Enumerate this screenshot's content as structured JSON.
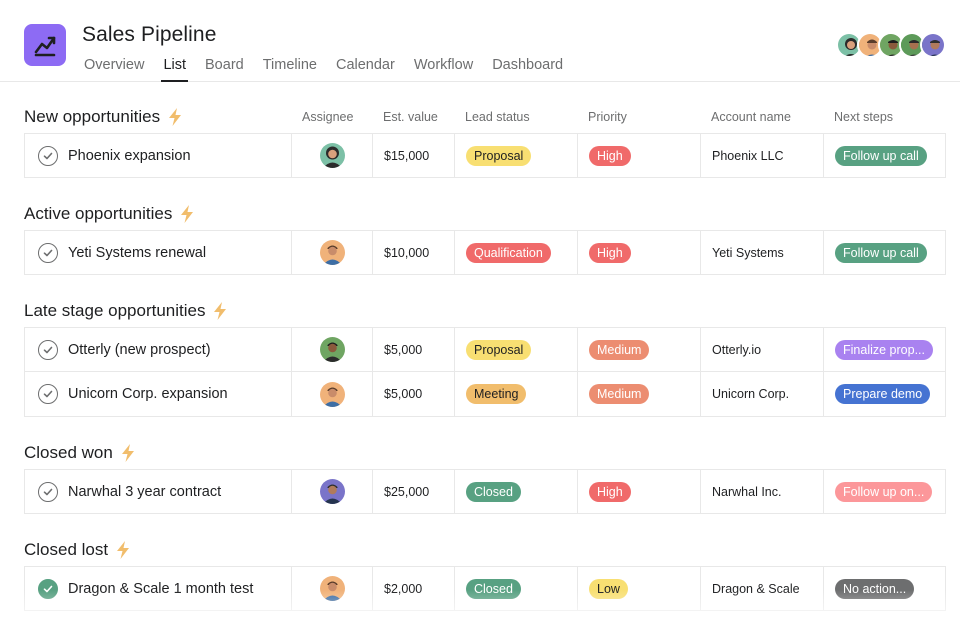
{
  "project": {
    "title": "Sales Pipeline",
    "icon": "chart-line-icon",
    "accent": "#8d6bf4"
  },
  "tabs": [
    {
      "label": "Overview",
      "active": false
    },
    {
      "label": "List",
      "active": true
    },
    {
      "label": "Timeline",
      "active": false
    },
    {
      "label": "Board",
      "active": false
    },
    {
      "label": "Calendar",
      "active": false
    },
    {
      "label": "Workflow",
      "active": false
    },
    {
      "label": "Dashboard",
      "active": false
    }
  ],
  "tab_order": [
    "Overview",
    "List",
    "Board",
    "Timeline",
    "Calendar",
    "Workflow",
    "Dashboard"
  ],
  "columns": {
    "assignee": "Assignee",
    "est_value": "Est. value",
    "lead_status": "Lead status",
    "priority": "Priority",
    "account_name": "Account name",
    "next_steps": "Next steps"
  },
  "sections": [
    {
      "title": "New opportunities",
      "rows": [
        {
          "name": "Phoenix expansion",
          "done": false,
          "value": "$15,000",
          "lead_status": "Proposal",
          "priority": "High",
          "account": "Phoenix LLC",
          "next": "Follow up call"
        }
      ]
    },
    {
      "title": "Active opportunities",
      "rows": [
        {
          "name": "Yeti Systems renewal",
          "done": false,
          "value": "$10,000",
          "lead_status": "Qualification",
          "priority": "High",
          "account": "Yeti Systems",
          "next": "Follow up call"
        }
      ]
    },
    {
      "title": "Late stage opportunities",
      "rows": [
        {
          "name": "Otterly (new prospect)",
          "done": false,
          "value": "$5,000",
          "lead_status": "Proposal",
          "priority": "Medium",
          "account": "Otterly.io",
          "next": "Finalize prop..."
        },
        {
          "name": "Unicorn Corp. expansion",
          "done": false,
          "value": "$5,000",
          "lead_status": "Meeting",
          "priority": "Medium",
          "account": "Unicorn Corp.",
          "next": "Prepare demo"
        }
      ]
    },
    {
      "title": "Closed won",
      "rows": [
        {
          "name": "Narwhal 3 year contract",
          "done": false,
          "value": "$25,000",
          "lead_status": "Closed",
          "priority": "High",
          "account": "Narwhal Inc.",
          "next": "Follow up on..."
        }
      ]
    },
    {
      "title": "Closed lost",
      "rows": [
        {
          "name": "Dragon & Scale 1 month test",
          "done": true,
          "value": "$2,000",
          "lead_status": "Closed",
          "priority": "Low",
          "account": "Dragon & Scale",
          "next": "No action..."
        }
      ]
    }
  ],
  "colors": {
    "Proposal": "#f8df72",
    "Qualification": "#f06a6a",
    "Meeting": "#f1bd6c",
    "Closed": "#58a182",
    "High": "#f06a6a",
    "Medium": "#ec8d71",
    "Low": "#f8df72",
    "Follow up call": "#58a182",
    "Finalize prop...": "#a982f0",
    "Prepare demo": "#4573d2",
    "Follow up on...": "#fc979a",
    "No action...": "#6d6e6f"
  }
}
